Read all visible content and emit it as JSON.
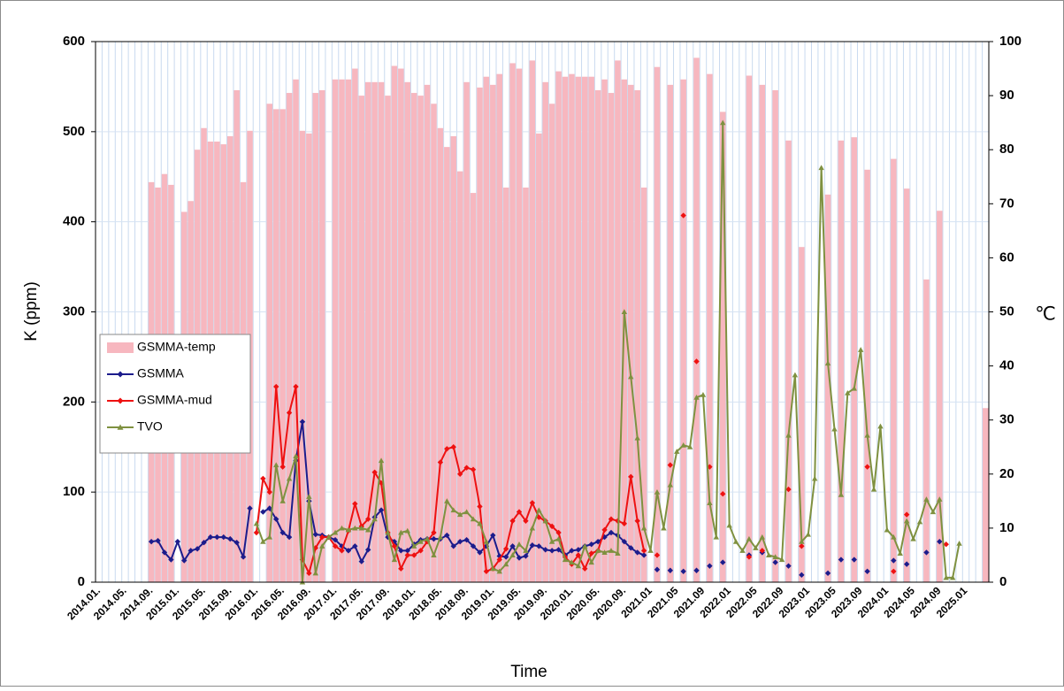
{
  "chart_data": {
    "type": "combo",
    "x_label": "Time",
    "y_label": "K (ppm)",
    "y2_label": "℃",
    "categories": [
      "2014.01.",
      null,
      null,
      null,
      "2014.05.",
      null,
      null,
      null,
      "2014.09.",
      null,
      null,
      null,
      "2015.01.",
      null,
      null,
      null,
      "2015.05.",
      null,
      null,
      null,
      "2015.09.",
      null,
      null,
      null,
      "2016.01.",
      null,
      null,
      null,
      "2016.05.",
      null,
      null,
      null,
      "2016.09.",
      null,
      null,
      null,
      "2017.01.",
      null,
      null,
      null,
      "2017.05.",
      null,
      null,
      null,
      "2017.09.",
      null,
      null,
      null,
      "2018.01.",
      null,
      null,
      null,
      "2018.05.",
      null,
      null,
      null,
      "2018.09.",
      null,
      null,
      null,
      "2019.01.",
      null,
      null,
      null,
      "2019.05.",
      null,
      null,
      null,
      "2019.09.",
      null,
      null,
      null,
      "2020.01.",
      null,
      null,
      null,
      "2020.05.",
      null,
      null,
      null,
      "2020.09.",
      null,
      null,
      null,
      "2021.01",
      null,
      null,
      null,
      "2021.05",
      null,
      null,
      null,
      "2021.09",
      null,
      null,
      null,
      "2022.01",
      null,
      null,
      null,
      "2022.05",
      null,
      null,
      null,
      "2022.09",
      null,
      null,
      null,
      "2023.01",
      null,
      null,
      null,
      "2023.05",
      null,
      null,
      null,
      "2023.09",
      null,
      null,
      null,
      "2024.01",
      null,
      null,
      null,
      "2024.05",
      null,
      null,
      null,
      "2024.09",
      null,
      null,
      null,
      "2025.01",
      null,
      null,
      null
    ],
    "ylim": [
      0,
      600
    ],
    "yticks": [
      0,
      100,
      200,
      300,
      400,
      500,
      600
    ],
    "y2lim": [
      0,
      100
    ],
    "y2ticks": [
      0,
      10,
      20,
      30,
      40,
      50,
      60,
      70,
      80,
      90,
      100
    ],
    "grid": true,
    "legend": "left",
    "series": [
      {
        "name": "GSMMA-temp",
        "type": "bar",
        "axis": "y2",
        "color": "#f7b7bf",
        "values": [
          null,
          null,
          null,
          null,
          null,
          null,
          null,
          null,
          74,
          73,
          75.5,
          73.5,
          null,
          68.5,
          70.5,
          80,
          84,
          81.5,
          81.5,
          81,
          82.5,
          91,
          74,
          83.5,
          null,
          null,
          88.5,
          87.5,
          87.5,
          90.5,
          93,
          83.5,
          83,
          90.5,
          91,
          null,
          93,
          93,
          93,
          95,
          90,
          92.5,
          92.5,
          92.5,
          90,
          95.5,
          95,
          92.5,
          90.5,
          90,
          92,
          88.5,
          84,
          80.5,
          82.5,
          76,
          92.5,
          72,
          91.5,
          93.5,
          92,
          94,
          73,
          96,
          95,
          73,
          96.5,
          83,
          92.5,
          88.5,
          94.5,
          93.5,
          94,
          93.5,
          93.5,
          93.5,
          91,
          93,
          90.5,
          96.5,
          93,
          92,
          91,
          73,
          null,
          95.3,
          null,
          92,
          null,
          93,
          null,
          97,
          null,
          94,
          null,
          87,
          null,
          null,
          null,
          93.7,
          null,
          92,
          null,
          91,
          null,
          81.7,
          null,
          62,
          null,
          null,
          null,
          71.7,
          null,
          81.7,
          null,
          82.3,
          null,
          76.3,
          null,
          null,
          null,
          78.3,
          null,
          72.8,
          null,
          null,
          56,
          null,
          68.7,
          null,
          null,
          null,
          null,
          null,
          null,
          32.2
        ]
      },
      {
        "name": "GSMMA",
        "type": "line",
        "marker": "diamond",
        "color": "#1c1c8c",
        "values": [
          null,
          null,
          null,
          null,
          null,
          null,
          null,
          null,
          45,
          46,
          33,
          25,
          45,
          24,
          35,
          37,
          44,
          50,
          50,
          50,
          48,
          44,
          28,
          82,
          null,
          78,
          82,
          70,
          55,
          50,
          135,
          178,
          90,
          53,
          52,
          50,
          47,
          40,
          35,
          40,
          23,
          36,
          72,
          80,
          50,
          45,
          35,
          35,
          42,
          47,
          48,
          48,
          48,
          52,
          40,
          45,
          47,
          40,
          33,
          40,
          52,
          29,
          28,
          40,
          27,
          29,
          41,
          40,
          36,
          35,
          36,
          30,
          35,
          36,
          40,
          42,
          45,
          50,
          55,
          52,
          45,
          38,
          33,
          30,
          null,
          14,
          null,
          13,
          null,
          12,
          null,
          13,
          null,
          18,
          null,
          22,
          null,
          null,
          null,
          30,
          null,
          33,
          null,
          22,
          null,
          18,
          null,
          8,
          null,
          null,
          null,
          10,
          null,
          25,
          null,
          25,
          null,
          12,
          null,
          null,
          null,
          24,
          null,
          20,
          null,
          null,
          33,
          null,
          45,
          null,
          null,
          null,
          null,
          null,
          null,
          null
        ]
      },
      {
        "name": "GSMMA-mud",
        "type": "line",
        "marker": "diamond",
        "color": "#ee1111",
        "values": [
          null,
          null,
          null,
          null,
          null,
          null,
          null,
          null,
          null,
          null,
          null,
          null,
          null,
          null,
          null,
          null,
          null,
          null,
          null,
          null,
          null,
          null,
          null,
          null,
          55,
          115,
          100,
          217,
          128,
          188,
          217,
          25,
          10,
          38,
          50,
          50,
          40,
          35,
          57,
          87,
          62,
          70,
          122,
          110,
          55,
          40,
          15,
          30,
          30,
          35,
          45,
          55,
          133,
          148,
          150,
          120,
          127,
          125,
          84,
          12,
          15,
          25,
          37,
          68,
          78,
          68,
          88,
          72,
          68,
          62,
          55,
          28,
          20,
          30,
          15,
          32,
          35,
          58,
          70,
          68,
          65,
          117,
          68,
          35,
          null,
          30,
          null,
          130,
          null,
          407,
          null,
          245,
          null,
          128,
          null,
          98,
          null,
          null,
          null,
          28,
          null,
          35,
          null,
          null,
          null,
          103,
          null,
          40,
          null,
          null,
          null,
          null,
          null,
          null,
          null,
          null,
          null,
          128,
          null,
          null,
          null,
          12,
          null,
          75,
          null,
          null,
          null,
          null,
          null,
          42,
          null,
          null,
          null,
          null,
          null,
          null
        ]
      },
      {
        "name": "TVO",
        "type": "line",
        "marker": "triangle",
        "color": "#7f9140",
        "values": [
          null,
          null,
          null,
          null,
          null,
          null,
          null,
          null,
          null,
          null,
          null,
          null,
          null,
          null,
          null,
          null,
          null,
          null,
          null,
          null,
          null,
          null,
          null,
          null,
          65,
          45,
          50,
          130,
          90,
          115,
          140,
          0,
          95,
          10,
          40,
          50,
          55,
          60,
          58,
          60,
          60,
          58,
          70,
          135,
          55,
          25,
          55,
          57,
          40,
          45,
          48,
          30,
          50,
          90,
          80,
          75,
          78,
          70,
          65,
          45,
          15,
          12,
          20,
          30,
          42,
          35,
          60,
          80,
          68,
          45,
          48,
          25,
          22,
          18,
          40,
          22,
          35,
          33,
          35,
          32,
          300,
          228,
          160,
          60,
          35,
          100,
          60,
          108,
          145,
          152,
          150,
          205,
          208,
          88,
          50,
          510,
          63,
          45,
          35,
          48,
          38,
          50,
          30,
          28,
          25,
          163,
          230,
          45,
          53,
          115,
          460,
          243,
          170,
          97,
          210,
          215,
          258,
          163,
          103,
          173,
          58,
          50,
          32,
          68,
          48,
          67,
          92,
          78,
          92,
          5,
          5,
          43,
          null,
          null,
          null,
          null
        ]
      }
    ]
  }
}
